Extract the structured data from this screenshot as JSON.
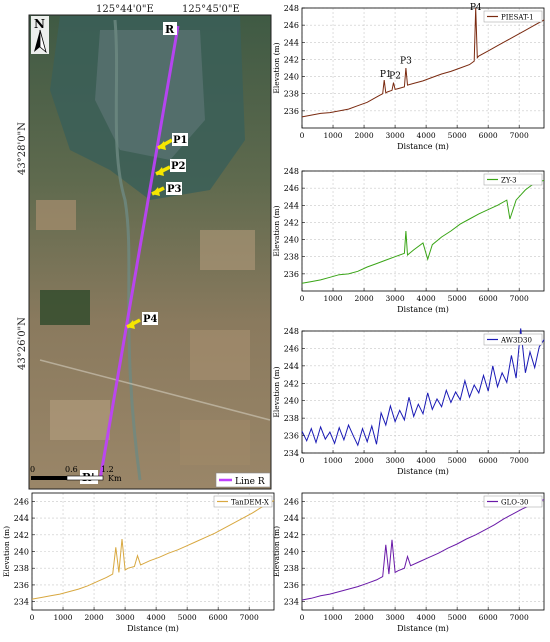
{
  "map": {
    "top_coords": [
      "125°44'0\"E",
      "125°45'0\"E"
    ],
    "side_coords": [
      "43°28'0\"N",
      "43°26'0\"N"
    ],
    "north_label": "N",
    "line_start": "R",
    "line_end": "R'",
    "points": [
      "P1",
      "P2",
      "P3",
      "P4"
    ],
    "legend_label": "Line R",
    "scale": {
      "ticks": [
        "0",
        "0.6",
        "1.2"
      ],
      "unit": "Km"
    },
    "colors": {
      "line": "#c040ff",
      "arrow": "#f5e600",
      "label_bg": "#ffffff"
    }
  },
  "chart_data": [
    {
      "type": "line",
      "legend": "PIESAT-1",
      "color": "#7a2a10",
      "xlabel": "Distance (m)",
      "ylabel": "Elevation (m)",
      "xlim": [
        0,
        7800
      ],
      "ylim": [
        234,
        248
      ],
      "xticks": [
        0,
        1000,
        2000,
        3000,
        4000,
        5000,
        6000,
        7000
      ],
      "yticks": [
        236,
        238,
        240,
        242,
        244,
        246,
        248
      ],
      "annotations": [
        {
          "text": "P1",
          "x": 2700,
          "y": 239.6
        },
        {
          "text": "P2",
          "x": 3000,
          "y": 239.4
        },
        {
          "text": "P3",
          "x": 3350,
          "y": 241.2
        },
        {
          "text": "P4",
          "x": 5600,
          "y": 247.4
        }
      ],
      "series": [
        {
          "x": [
            0,
            300,
            600,
            900,
            1200,
            1500,
            1800,
            2100,
            2400,
            2600,
            2650,
            2700,
            2750,
            2900,
            2950,
            3000,
            3100,
            3300,
            3350,
            3400,
            3600,
            3900,
            4200,
            4500,
            4800,
            5100,
            5400,
            5550,
            5600,
            5650,
            5700,
            6000,
            6300,
            6600,
            6900,
            7200,
            7500,
            7800
          ],
          "y": [
            235.3,
            235.5,
            235.7,
            235.8,
            236.0,
            236.2,
            236.6,
            237.0,
            237.6,
            238.0,
            239.6,
            238.1,
            238.2,
            238.4,
            239.3,
            238.5,
            238.6,
            238.8,
            241.0,
            239.0,
            239.2,
            239.5,
            239.9,
            240.3,
            240.6,
            241.0,
            241.4,
            241.8,
            248.0,
            242.2,
            242.4,
            243.0,
            243.6,
            244.2,
            244.8,
            245.4,
            246.0,
            246.6
          ]
        }
      ]
    },
    {
      "type": "line",
      "legend": "ZY-3",
      "color": "#3aa517",
      "xlabel": "Distance (m)",
      "ylabel": "Elevation (m)",
      "xlim": [
        0,
        7800
      ],
      "ylim": [
        234,
        248
      ],
      "xticks": [
        0,
        1000,
        2000,
        3000,
        4000,
        5000,
        6000,
        7000
      ],
      "yticks": [
        236,
        238,
        240,
        242,
        244,
        246,
        248
      ],
      "series": [
        {
          "x": [
            0,
            300,
            600,
            900,
            1200,
            1500,
            1800,
            2100,
            2400,
            2700,
            3000,
            3300,
            3350,
            3400,
            3600,
            3900,
            4050,
            4200,
            4500,
            4800,
            5100,
            5400,
            5700,
            6000,
            6300,
            6600,
            6700,
            6900,
            7200,
            7500,
            7800
          ],
          "y": [
            234.9,
            235.1,
            235.3,
            235.6,
            235.9,
            236.0,
            236.3,
            236.8,
            237.2,
            237.6,
            238.0,
            238.4,
            241.0,
            238.2,
            238.8,
            239.6,
            237.7,
            239.4,
            240.3,
            241.0,
            241.8,
            242.4,
            243.0,
            243.5,
            244.0,
            244.6,
            242.4,
            244.6,
            245.8,
            246.6,
            246.9
          ]
        }
      ]
    },
    {
      "type": "line",
      "legend": "AW3D30",
      "color": "#1a1ab5",
      "xlabel": "Distance (m)",
      "ylabel": "Elevation (m)",
      "xlim": [
        0,
        7800
      ],
      "ylim": [
        234,
        248
      ],
      "xticks": [
        0,
        1000,
        2000,
        3000,
        4000,
        5000,
        6000,
        7000
      ],
      "yticks": [
        234,
        236,
        238,
        240,
        242,
        244,
        246,
        248
      ],
      "series": [
        {
          "x": [
            0,
            150,
            300,
            450,
            600,
            750,
            900,
            1050,
            1200,
            1350,
            1500,
            1650,
            1800,
            1950,
            2100,
            2250,
            2400,
            2550,
            2700,
            2850,
            3000,
            3150,
            3300,
            3450,
            3600,
            3750,
            3900,
            4050,
            4200,
            4350,
            4500,
            4650,
            4800,
            4950,
            5100,
            5250,
            5400,
            5550,
            5700,
            5850,
            6000,
            6150,
            6300,
            6450,
            6600,
            6750,
            6900,
            7050,
            7200,
            7350,
            7500,
            7650,
            7800
          ],
          "y": [
            236.5,
            235.4,
            236.8,
            235.2,
            237.0,
            235.6,
            236.4,
            235.1,
            236.9,
            235.5,
            237.2,
            236.0,
            234.9,
            236.8,
            235.3,
            237.1,
            235.0,
            238.6,
            237.2,
            239.4,
            237.6,
            238.9,
            237.8,
            240.4,
            238.2,
            239.6,
            238.5,
            240.9,
            239.0,
            240.2,
            239.3,
            241.2,
            239.8,
            241.0,
            240.1,
            242.3,
            240.4,
            241.8,
            240.9,
            242.9,
            241.1,
            244.0,
            241.6,
            243.2,
            242.1,
            245.2,
            242.6,
            248.3,
            243.2,
            245.6,
            243.8,
            246.2,
            247.0
          ]
        }
      ]
    },
    {
      "type": "line",
      "legend": "TanDEM-X",
      "color": "#d8a840",
      "xlabel": "Distance (m)",
      "ylabel": "Elevation (m)",
      "xlim": [
        0,
        7800
      ],
      "ylim": [
        233,
        247
      ],
      "xticks": [
        0,
        1000,
        2000,
        3000,
        4000,
        5000,
        6000,
        7000
      ],
      "yticks": [
        234,
        236,
        238,
        240,
        242,
        244,
        246
      ],
      "series": [
        {
          "x": [
            0,
            300,
            600,
            900,
            1200,
            1500,
            1800,
            2100,
            2400,
            2600,
            2700,
            2800,
            2900,
            3000,
            3100,
            3300,
            3400,
            3500,
            3800,
            4100,
            4400,
            4700,
            5000,
            5300,
            5600,
            5900,
            6200,
            6500,
            6800,
            7100,
            7400,
            7600,
            7800
          ],
          "y": [
            234.3,
            234.5,
            234.7,
            234.9,
            235.2,
            235.5,
            235.9,
            236.4,
            236.9,
            237.3,
            240.5,
            237.5,
            241.5,
            237.8,
            238.0,
            238.2,
            239.5,
            238.4,
            238.9,
            239.3,
            239.8,
            240.2,
            240.7,
            241.2,
            241.7,
            242.2,
            242.8,
            243.4,
            244.0,
            244.6,
            245.3,
            245.7,
            246.1
          ]
        }
      ]
    },
    {
      "type": "line",
      "legend": "GLO-30",
      "color": "#6a1aa8",
      "xlabel": "Distance (m)",
      "ylabel": "Elevation (m)",
      "xlim": [
        0,
        7800
      ],
      "ylim": [
        233,
        247
      ],
      "xticks": [
        0,
        1000,
        2000,
        3000,
        4000,
        5000,
        6000,
        7000
      ],
      "yticks": [
        234,
        236,
        238,
        240,
        242,
        244,
        246
      ],
      "series": [
        {
          "x": [
            0,
            300,
            600,
            900,
            1200,
            1500,
            1800,
            2100,
            2400,
            2600,
            2700,
            2800,
            2900,
            3000,
            3100,
            3300,
            3400,
            3500,
            3800,
            4100,
            4400,
            4700,
            5000,
            5300,
            5600,
            5900,
            6200,
            6500,
            6800,
            7100,
            7400,
            7600,
            7800
          ],
          "y": [
            234.2,
            234.4,
            234.7,
            234.9,
            235.2,
            235.5,
            235.8,
            236.2,
            236.6,
            237.0,
            240.8,
            237.3,
            241.4,
            237.5,
            237.7,
            238.0,
            239.4,
            238.3,
            238.8,
            239.3,
            239.8,
            240.4,
            240.9,
            241.5,
            242.0,
            242.6,
            243.2,
            243.9,
            244.5,
            245.1,
            245.6,
            246.0,
            246.2
          ]
        }
      ]
    }
  ]
}
